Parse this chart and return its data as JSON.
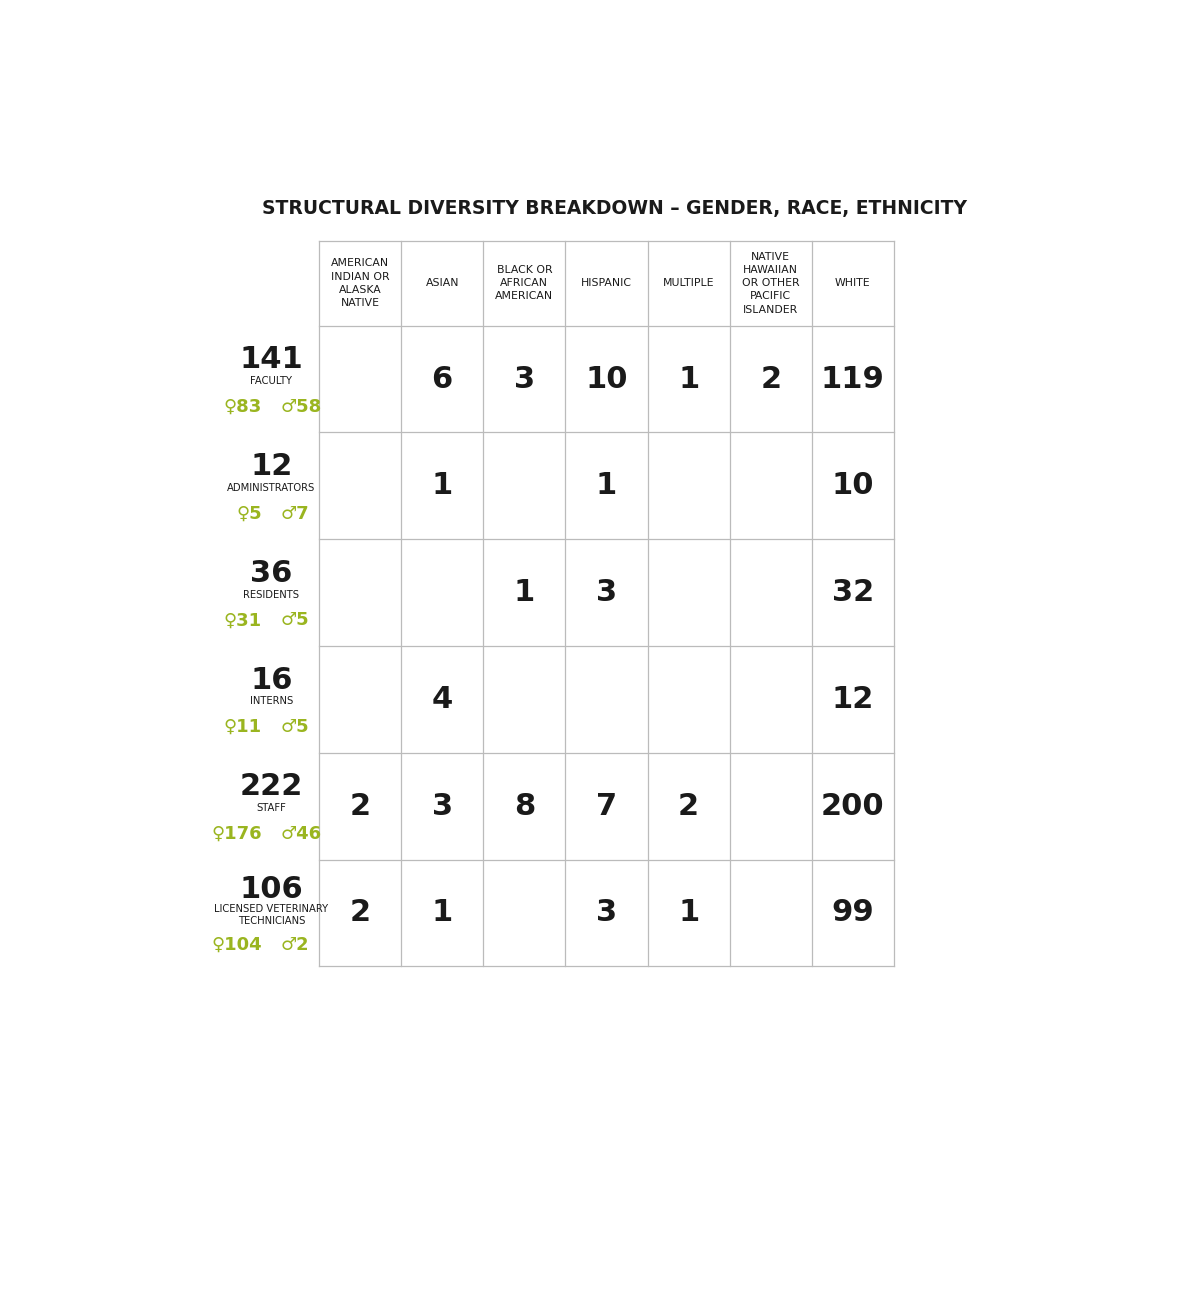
{
  "title": "STRUCTURAL DIVERSITY BREAKDOWN – GENDER, RACE, ETHNICITY",
  "title_fontsize": 13.5,
  "background_color": "#ffffff",
  "col_headers": [
    "AMERICAN\nINDIAN OR\nALASKA\nNATIVE",
    "ASIAN",
    "BLACK OR\nAFRICAN\nAMERICAN",
    "HISPANIC",
    "MULTIPLE",
    "NATIVE\nHAWAIIAN\nOR OTHER\nPACIFIC\nISLANDER",
    "WHITE"
  ],
  "rows": [
    {
      "total": "141",
      "label": "FACULTY",
      "female": "83",
      "male": "58",
      "values": [
        "",
        "6",
        "3",
        "10",
        "1",
        "2",
        "119"
      ]
    },
    {
      "total": "12",
      "label": "ADMINISTRATORS",
      "female": "5",
      "male": "7",
      "values": [
        "",
        "1",
        "",
        "1",
        "",
        "",
        "10"
      ]
    },
    {
      "total": "36",
      "label": "RESIDENTS",
      "female": "31",
      "male": "5",
      "values": [
        "",
        "",
        "1",
        "3",
        "",
        "",
        "32"
      ]
    },
    {
      "total": "16",
      "label": "INTERNS",
      "female": "11",
      "male": "5",
      "values": [
        "",
        "4",
        "",
        "",
        "",
        "",
        "12"
      ]
    },
    {
      "total": "222",
      "label": "STAFF",
      "female": "176",
      "male": "46",
      "values": [
        "2",
        "3",
        "8",
        "7",
        "2",
        "",
        "200"
      ]
    },
    {
      "total": "106",
      "label": "LICENSED VETERINARY\nTECHNICIANS",
      "female": "104",
      "male": "2",
      "values": [
        "2",
        "1",
        "",
        "3",
        "1",
        "",
        "99"
      ]
    }
  ],
  "lime_color": "#9ab520",
  "text_color": "#1a1a1a",
  "grid_color": "#bbbbbb"
}
